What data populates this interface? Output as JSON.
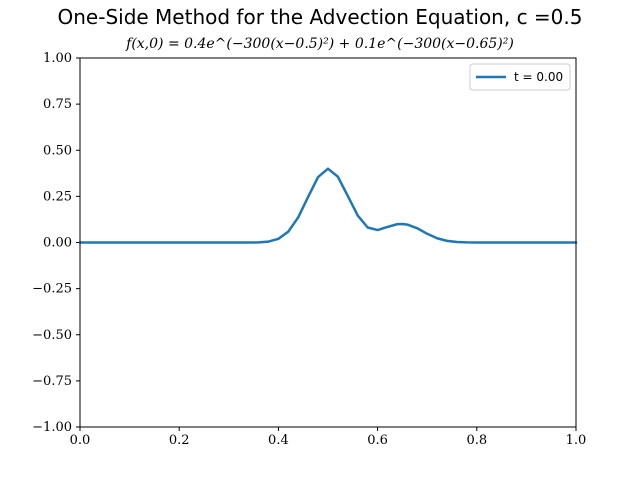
{
  "chart_data": {
    "type": "line",
    "title": "One-Side Method for the Advection Equation, c =0.5",
    "subtitle": "f(x,0) = 0.4e^(−300(x−0.5)²) + 0.1e^(−300(x−0.65)²)",
    "xlabel": "",
    "ylabel": "",
    "xlim": [
      0.0,
      1.0
    ],
    "ylim": [
      -1.0,
      1.0
    ],
    "x_ticks": [
      "0.0",
      "0.2",
      "0.4",
      "0.6",
      "0.8",
      "1.0"
    ],
    "y_ticks": [
      "−1.00",
      "−0.75",
      "−0.50",
      "−0.25",
      "0.00",
      "0.25",
      "0.50",
      "0.75",
      "1.00"
    ],
    "grid": false,
    "legend_position": "top-right",
    "series": [
      {
        "name": "t = 0.00",
        "color": "#1f77b4",
        "x": [
          0.0,
          0.05,
          0.1,
          0.15,
          0.2,
          0.25,
          0.3,
          0.35,
          0.36,
          0.38,
          0.4,
          0.42,
          0.44,
          0.46,
          0.48,
          0.5,
          0.52,
          0.54,
          0.56,
          0.58,
          0.6,
          0.62,
          0.64,
          0.65,
          0.66,
          0.68,
          0.7,
          0.72,
          0.74,
          0.76,
          0.78,
          0.8,
          0.85,
          0.9,
          0.95,
          1.0
        ],
        "y": [
          0.0,
          0.0,
          0.0,
          0.0,
          0.0,
          0.0,
          0.0,
          0.0,
          0.001,
          0.005,
          0.02,
          0.059,
          0.1367,
          0.2478,
          0.3548,
          0.4,
          0.3563,
          0.2516,
          0.1458,
          0.0813,
          0.0676,
          0.0845,
          0.0996,
          0.1002,
          0.0971,
          0.0771,
          0.0472,
          0.023,
          0.0088,
          0.0026,
          0.0006,
          0.0001,
          0.0,
          0.0,
          0.0,
          0.0
        ]
      }
    ]
  }
}
